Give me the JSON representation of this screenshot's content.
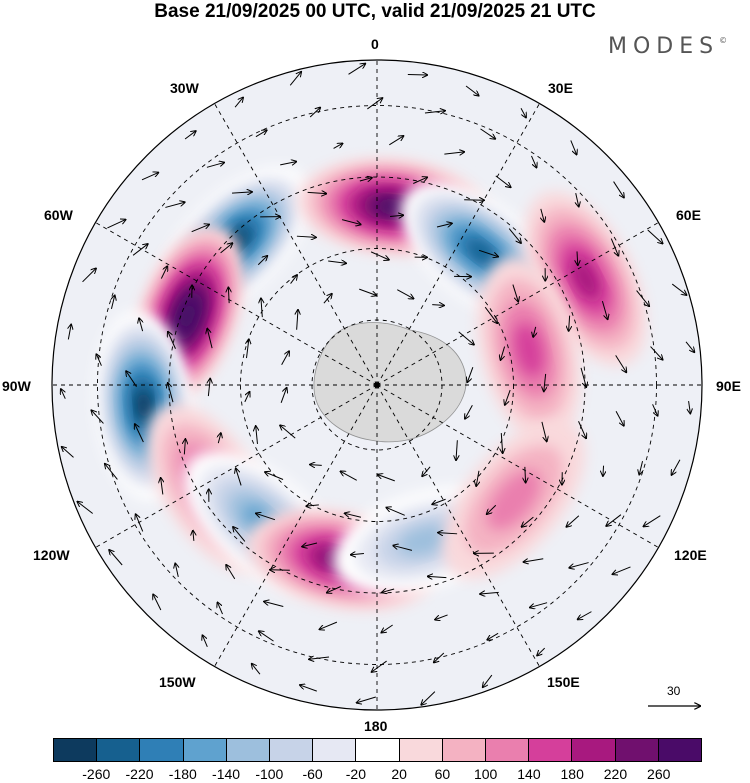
{
  "title": "Base 21/09/2025 00 UTC, valid 21/09/2025 21 UTC",
  "brand": "MODES",
  "brand_mark": "©",
  "longitude_labels": {
    "deg0": "0",
    "deg30e": "30E",
    "deg60e": "60E",
    "deg90e": "90E",
    "deg120e": "120E",
    "deg150e": "150E",
    "deg180": "180",
    "deg150w": "150W",
    "deg120w": "120W",
    "deg90w": "90W",
    "deg60w": "60W",
    "deg30w": "30W"
  },
  "reference_vector": "30",
  "colorbar": {
    "colors": [
      "#0d3a5e",
      "#16608f",
      "#2f7fb6",
      "#5fa2cf",
      "#9dbfdd",
      "#c7d3e8",
      "#e6e8f3",
      "#ffffff",
      "#f9d9dc",
      "#f4b2c2",
      "#ea7fae",
      "#d53f9b",
      "#a8197f",
      "#70106e",
      "#4a0b68"
    ],
    "tick_labels": [
      "-260",
      "-220",
      "-180",
      "-140",
      "-100",
      "-60",
      "-20",
      "20",
      "60",
      "100",
      "140",
      "180",
      "220",
      "260"
    ]
  },
  "map_data": {
    "projection": "south-polar-stereographic",
    "anomalies": [
      {
        "name": "neg-30w-60w",
        "value": -260,
        "lon": -45,
        "r": 0.62
      },
      {
        "name": "pos-60w-90w",
        "value": 260,
        "lon": -70,
        "r": 0.62
      },
      {
        "name": "neg-90w",
        "value": -260,
        "lon": -95,
        "r": 0.72
      },
      {
        "name": "pos-0",
        "value": 240,
        "lon": 5,
        "r": 0.55
      },
      {
        "name": "neg-30e-60e",
        "value": -250,
        "lon": 38,
        "r": 0.52
      },
      {
        "name": "pos-60e",
        "value": 140,
        "lon": 63,
        "r": 0.72
      },
      {
        "name": "pos-75e",
        "value": 120,
        "lon": 77,
        "r": 0.48
      },
      {
        "name": "pos-120w",
        "value": 120,
        "lon": -122,
        "r": 0.6
      },
      {
        "name": "neg-140w",
        "value": -140,
        "lon": -140,
        "r": 0.55
      },
      {
        "name": "pos-160w",
        "value": 200,
        "lon": -168,
        "r": 0.55
      },
      {
        "name": "neg-160e",
        "value": -120,
        "lon": 163,
        "r": 0.5
      },
      {
        "name": "pos-130e",
        "value": 80,
        "lon": 130,
        "r": 0.55
      }
    ]
  }
}
